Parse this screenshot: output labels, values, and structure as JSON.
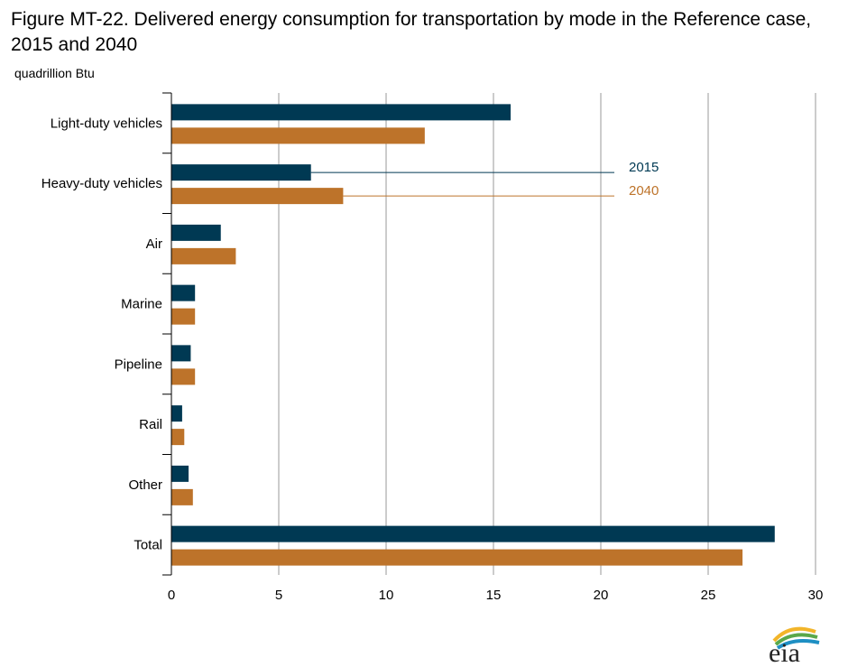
{
  "title": "Figure MT-22. Delivered energy consumption for transportation by mode in the Reference case, 2015 and 2040",
  "unit_label": "quadrillion Btu",
  "logo_text": "eia",
  "colors": {
    "series_2015": "#003953",
    "series_2040": "#bd732a",
    "grid": "#9a9a9a",
    "axis": "#000000"
  },
  "chart_data": {
    "type": "bar",
    "orientation": "horizontal",
    "categories": [
      "Light-duty vehicles",
      "Heavy-duty vehicles",
      "Air",
      "Marine",
      "Pipeline",
      "Rail",
      "Other",
      "Total"
    ],
    "series": [
      {
        "name": "2015",
        "values": [
          15.8,
          6.5,
          2.3,
          1.1,
          0.9,
          0.5,
          0.8,
          28.1
        ]
      },
      {
        "name": "2040",
        "values": [
          11.8,
          8.0,
          3.0,
          1.1,
          1.1,
          0.6,
          1.0,
          26.6
        ]
      }
    ],
    "xlim": [
      0,
      30
    ],
    "xticks": [
      "0",
      "5",
      "10",
      "15",
      "20",
      "25",
      "30"
    ],
    "grid": true,
    "legend_placement": "inline-callout"
  }
}
